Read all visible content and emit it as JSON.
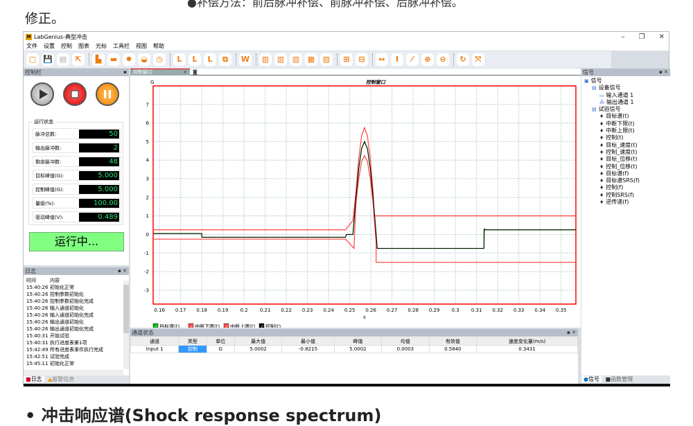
{
  "document": {
    "top_text": "●补偿方法：前后脉冲补偿、前脉冲补偿、后脉冲补偿。",
    "fix_text": "修正。",
    "bottom_heading": "• 冲击响应谱(Shock response spectrum)"
  },
  "window": {
    "title": "LabGenius-典型冲击",
    "logo": "M",
    "controls": [
      "–",
      "❐",
      "✕"
    ]
  },
  "menu": [
    "文件",
    "设置",
    "控制",
    "图表",
    "光标",
    "工具栏",
    "视图",
    "帮助"
  ],
  "toolbar": {
    "groups": [
      [
        {
          "icon": "new-icon",
          "glyph": "▢"
        },
        {
          "icon": "save-icon",
          "glyph": "💾"
        },
        {
          "icon": "open-icon",
          "glyph": "▤",
          "disabled": true
        },
        {
          "icon": "export-icon",
          "glyph": "⇱"
        }
      ],
      [
        {
          "icon": "report-icon",
          "glyph": "▙"
        },
        {
          "icon": "range-icon",
          "glyph": "▬"
        },
        {
          "icon": "settings-icon",
          "glyph": "✹"
        },
        {
          "icon": "curve-icon",
          "glyph": "◒"
        },
        {
          "icon": "clock-icon",
          "glyph": "◷"
        }
      ],
      [
        {
          "icon": "limit-l-icon",
          "glyph": "L"
        },
        {
          "icon": "limit-l-plus-icon",
          "glyph": "L"
        },
        {
          "icon": "limit-l-minus-icon",
          "glyph": "L"
        },
        {
          "icon": "overlay-icon",
          "glyph": "⧉"
        }
      ],
      [
        {
          "icon": "word-icon",
          "glyph": "W"
        }
      ],
      [
        {
          "icon": "chart-grid1-icon",
          "glyph": "▥"
        },
        {
          "icon": "chart-grid2-icon",
          "glyph": "▥"
        },
        {
          "icon": "chart-grid3-icon",
          "glyph": "▥"
        },
        {
          "icon": "chart-grid4-icon",
          "glyph": "▦"
        },
        {
          "icon": "chart-grid5-icon",
          "glyph": "▨"
        }
      ],
      [
        {
          "icon": "layout1-icon",
          "glyph": "⊞"
        },
        {
          "icon": "layout2-icon",
          "glyph": "⊟"
        }
      ],
      [
        {
          "icon": "fit-x-icon",
          "glyph": "↔"
        },
        {
          "icon": "fit-y-icon",
          "glyph": "I"
        },
        {
          "icon": "fit-xy-icon",
          "glyph": "⁄"
        },
        {
          "icon": "zoom-in-icon",
          "glyph": "⊕"
        },
        {
          "icon": "zoom-out-icon",
          "glyph": "⊖"
        }
      ],
      [
        {
          "icon": "refresh-icon",
          "glyph": "↻"
        },
        {
          "icon": "fullscreen-icon",
          "glyph": "⤧"
        }
      ]
    ]
  },
  "control_panel": {
    "title": "控制栏",
    "group_title": "运行状态",
    "status": [
      {
        "label": "脉冲总数:",
        "value": "50"
      },
      {
        "label": "输出脉冲数:",
        "value": "2"
      },
      {
        "label": "剩余脉冲数:",
        "value": "48"
      },
      {
        "label": "目标峰值(G):",
        "value": "5.000"
      },
      {
        "label": "控制峰值(G):",
        "value": "5.000"
      },
      {
        "label": "量级(%):",
        "value": "100.00"
      },
      {
        "label": "驱动峰值(V):",
        "value": "0.489"
      }
    ],
    "run_state": "运行中..."
  },
  "log": {
    "title": "日志",
    "col_time": "时间",
    "col_content": "内容",
    "rows": [
      [
        "15:40:26",
        "初始化正常"
      ],
      [
        "15:40:26",
        "控制参数初始化"
      ],
      [
        "15:40:26",
        "控制参数初始化完成"
      ],
      [
        "15:40:26",
        "输入通道初始化"
      ],
      [
        "15:40:26",
        "输入通道初始化完成"
      ],
      [
        "15:40:26",
        "输出通道初始化"
      ],
      [
        "15:40:26",
        "输出通道初始化完成"
      ],
      [
        "15:40:31",
        "开始试验"
      ],
      [
        "15:40:31",
        "执行进度表第1项"
      ],
      [
        "15:42:49",
        "所有进度表事件执行完成"
      ],
      [
        "15:42:51",
        "试验完成"
      ],
      [
        "15:45:11",
        "初始化正常"
      ]
    ],
    "tabs": [
      "日志",
      "报警信息"
    ]
  },
  "chart_tab": "控制窗口",
  "chart_data": {
    "type": "line",
    "title": "控制窗口",
    "ylabel": "G",
    "xlabel": "s",
    "xlim": [
      0.157,
      0.357
    ],
    "ylim": [
      -3.75,
      8
    ],
    "xticks": [
      "0.16",
      "0.17",
      "0.18",
      "0.19",
      "0.2",
      "0.21",
      "0.22",
      "0.23",
      "0.24",
      "0.25",
      "0.26",
      "0.27",
      "0.28",
      "0.29",
      "0.3",
      "0.31",
      "0.32",
      "0.33",
      "0.34",
      "0.35"
    ],
    "yticks": [
      "7",
      "6",
      "5",
      "4",
      "3",
      "2",
      "1",
      "0",
      "-1",
      "-2",
      "-3"
    ],
    "grid": true,
    "legend": "bottom-left",
    "series": [
      {
        "name": "目标谱(t)",
        "color": "#00b000",
        "x": [
          0.157,
          0.18,
          0.18,
          0.248,
          0.2485,
          0.2515,
          0.25288,
          0.25425,
          0.25563,
          0.257,
          0.25838,
          0.25975,
          0.26113,
          0.2625,
          0.263,
          0.3135,
          0.3135,
          0.357
        ],
        "y": [
          0.05,
          0.05,
          -0.15,
          -0.15,
          0,
          0,
          1.913,
          3.536,
          4.619,
          5,
          4.619,
          3.536,
          1.913,
          0,
          -0.75,
          -0.75,
          0.25,
          0.25
        ]
      },
      {
        "name": "中断下限(t)",
        "color": "#ff4040",
        "x": [
          0.157,
          0.248,
          0.252,
          0.25288,
          0.25425,
          0.25563,
          0.257,
          0.25838,
          0.25975,
          0.26113,
          0.2625,
          0.2625,
          0.357
        ],
        "y": [
          -0.25,
          -0.25,
          -0.75,
          1.6,
          3.0,
          3.93,
          4.25,
          3.93,
          3.0,
          1.6,
          -0.5,
          -1.5,
          -1.5
        ]
      },
      {
        "name": "中断上限(t)",
        "color": "#ff4040",
        "x": [
          0.157,
          0.248,
          0.2515,
          0.25288,
          0.25425,
          0.25563,
          0.257,
          0.25838,
          0.25975,
          0.26113,
          0.2615,
          0.2625,
          0.357
        ],
        "y": [
          0.25,
          0.25,
          0.75,
          2.2,
          4.07,
          5.31,
          5.75,
          5.31,
          4.07,
          2.2,
          1.0,
          1.0,
          1.0
        ]
      },
      {
        "name": "控制(t)",
        "color": "#000000",
        "x": [
          0.157,
          0.18,
          0.18,
          0.248,
          0.2485,
          0.2515,
          0.25288,
          0.25425,
          0.25563,
          0.257,
          0.25838,
          0.25975,
          0.26113,
          0.2625,
          0.263,
          0.3135,
          0.3137,
          0.3145,
          0.357
        ],
        "y": [
          0.05,
          0.05,
          -0.15,
          -0.15,
          0,
          0,
          1.913,
          3.536,
          4.619,
          5,
          4.619,
          3.536,
          1.913,
          0,
          -0.75,
          -0.75,
          0.3,
          0.25,
          0.25
        ]
      }
    ]
  },
  "channel_status": {
    "title": "通道状态",
    "headers": [
      "通道",
      "类型",
      "单位",
      "最大值",
      "最小值",
      "峰值",
      "均值",
      "有效值",
      "速度变化量(m/s)"
    ],
    "rows": [
      [
        "Input 1",
        "控制",
        "G",
        "5.0002",
        "-0.8215",
        "5.0002",
        "0.0003",
        "0.5840",
        "0.3431"
      ]
    ]
  },
  "signal_panel": {
    "title": "信号",
    "tree": [
      {
        "label": "信号",
        "level": 0,
        "icon": "root-icon"
      },
      {
        "label": "设备信号",
        "level": 1,
        "icon": "folder-icon"
      },
      {
        "label": "输入通道 1",
        "level": 2,
        "icon": "input-channel-icon"
      },
      {
        "label": "输出通道 1",
        "level": 2,
        "icon": "output-channel-icon"
      },
      {
        "label": "试验信号",
        "level": 1,
        "icon": "folder-icon"
      },
      {
        "label": "目标谱(t)",
        "level": 2,
        "icon": "signal-icon"
      },
      {
        "label": "中断下限(t)",
        "level": 2,
        "icon": "signal-icon"
      },
      {
        "label": "中断上限(t)",
        "level": 2,
        "icon": "signal-icon"
      },
      {
        "label": "控制(t)",
        "level": 2,
        "icon": "signal-icon"
      },
      {
        "label": "目标_速度(t)",
        "level": 2,
        "icon": "signal-icon"
      },
      {
        "label": "控制_速度(t)",
        "level": 2,
        "icon": "signal-icon"
      },
      {
        "label": "目标_位移(t)",
        "level": 2,
        "icon": "signal-icon"
      },
      {
        "label": "控制_位移(t)",
        "level": 2,
        "icon": "signal-icon"
      },
      {
        "label": "目标谱(f)",
        "level": 2,
        "icon": "signal-icon"
      },
      {
        "label": "目标谱SRS(f)",
        "level": 2,
        "icon": "signal-icon"
      },
      {
        "label": "控制(f)",
        "level": 2,
        "icon": "signal-icon"
      },
      {
        "label": "控制SRS(f)",
        "level": 2,
        "icon": "signal-icon"
      },
      {
        "label": "逆传递(f)",
        "level": 2,
        "icon": "signal-icon"
      }
    ],
    "tabs": [
      "信号",
      "函数管理"
    ]
  }
}
